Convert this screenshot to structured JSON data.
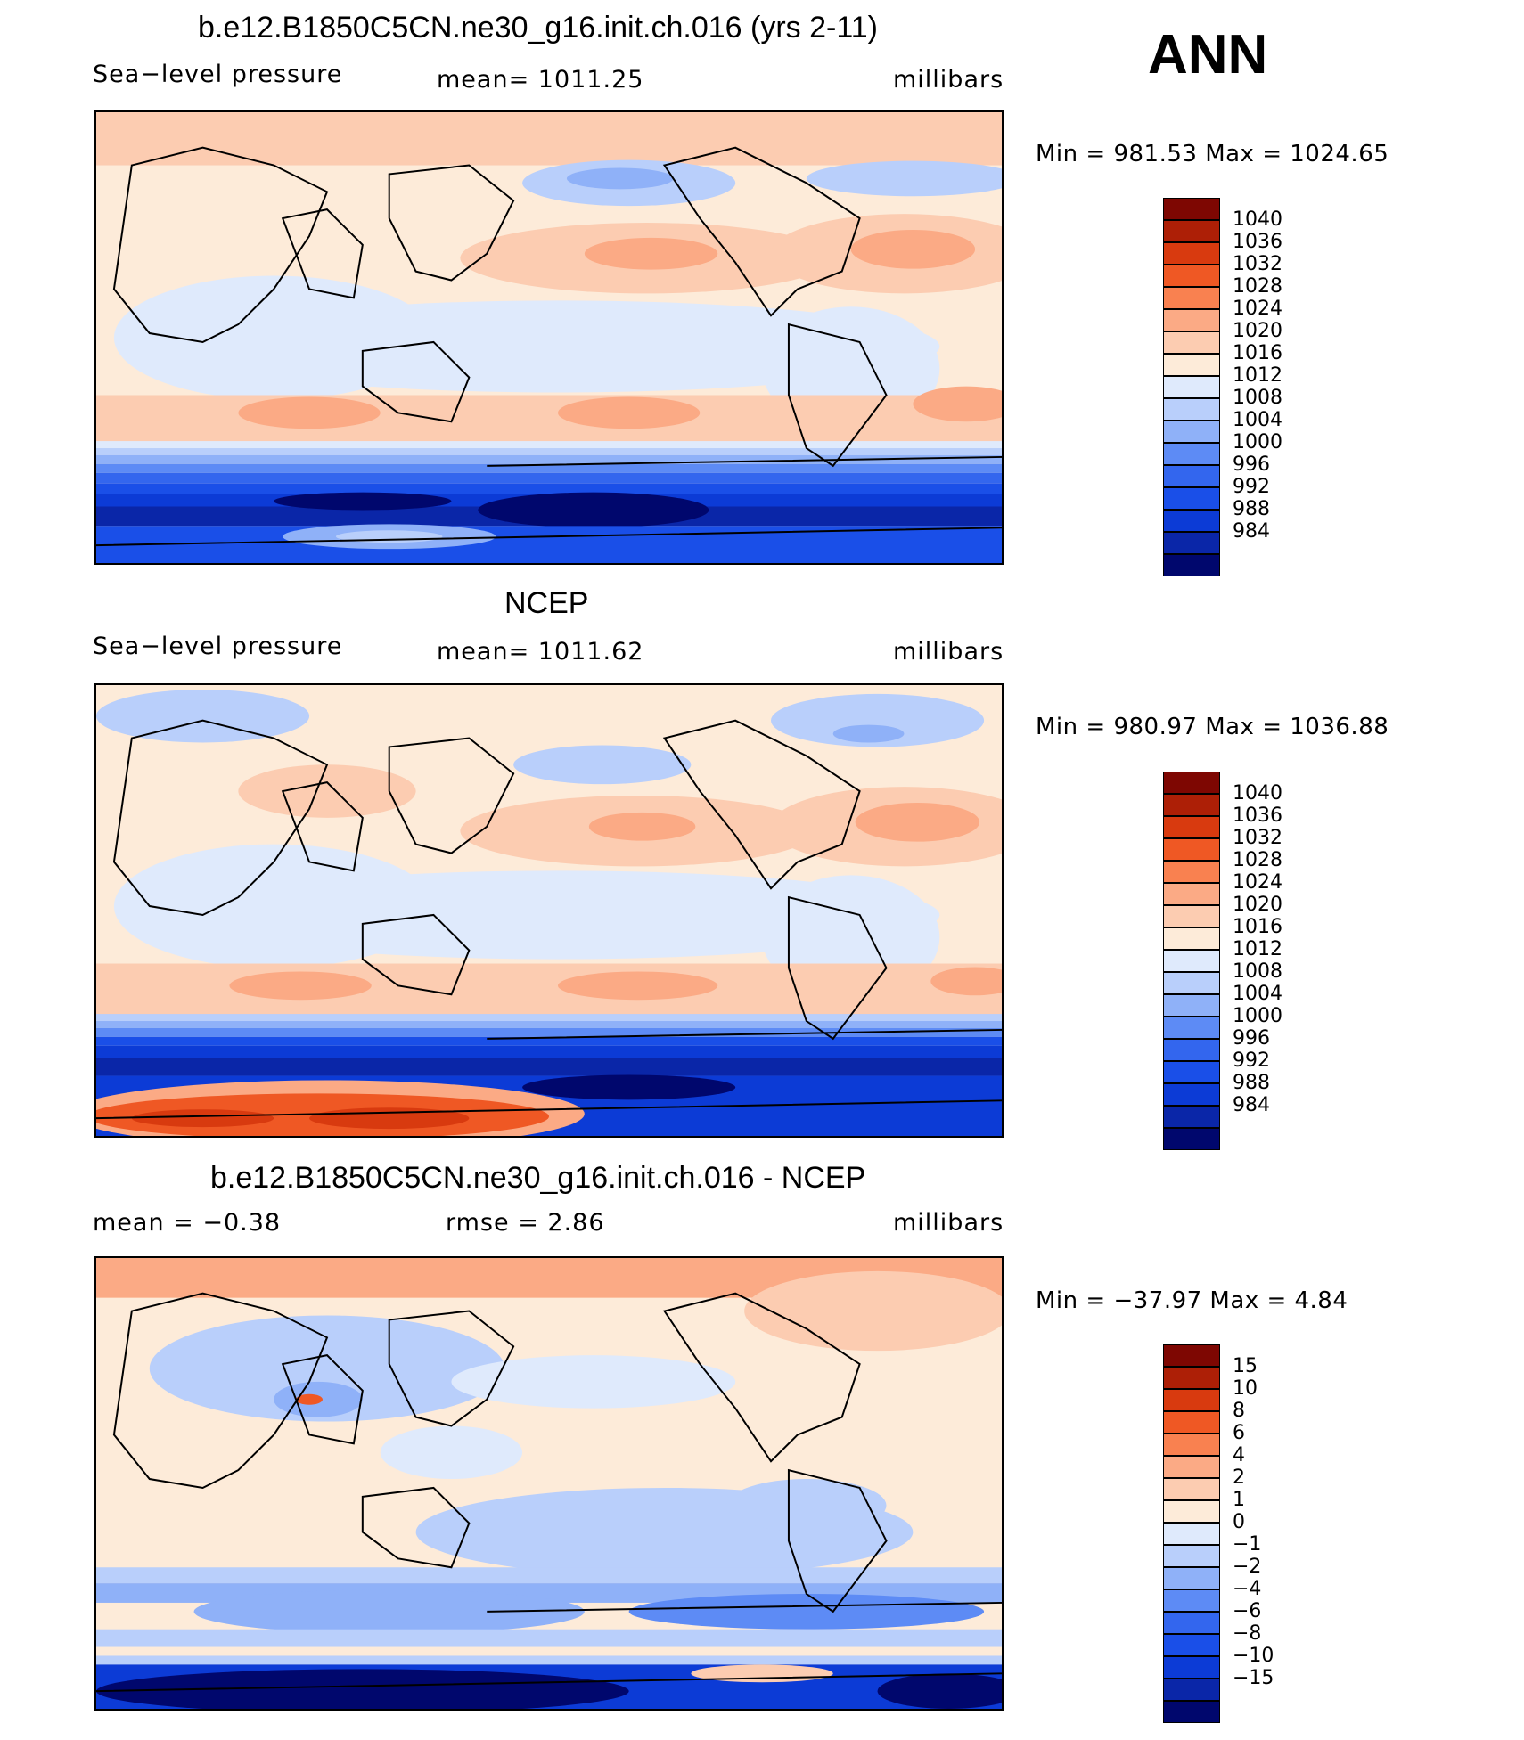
{
  "season": "ANN",
  "colors": {
    "pressure": [
      "#00076d",
      "#0a26a8",
      "#0c3bd6",
      "#1a4fe8",
      "#3366ee",
      "#5d8bf5",
      "#8fb1f8",
      "#b9cffb",
      "#dfeafc",
      "#fdebd9",
      "#fcccb1",
      "#fbaa85",
      "#f98150",
      "#ef5824",
      "#d83a0f",
      "#ad1f06",
      "#7e0702"
    ],
    "diff": [
      "#00076d",
      "#0a26a8",
      "#0c3bd6",
      "#1a4fe8",
      "#3366ee",
      "#5d8bf5",
      "#8fb1f8",
      "#b9cffb",
      "#dfeafc",
      "#fdebd9",
      "#fcccb1",
      "#fbaa85",
      "#f98150",
      "#ef5824",
      "#d83a0f",
      "#ad1f06",
      "#7e0702"
    ]
  },
  "panels": [
    {
      "title": "b.e12.B1850C5CN.ne30_g16.init.ch.016 (yrs 2-11)",
      "left": "Sea−level pressure",
      "middle": "mean=  1011.25",
      "right": "millibars",
      "minmax": "Min  =  981.53  Max  =  1024.65",
      "levels": [
        "1040",
        "1036",
        "1032",
        "1028",
        "1024",
        "1020",
        "1016",
        "1012",
        "1008",
        "1004",
        "1000",
        "996",
        "992",
        "988",
        "984"
      ],
      "field": "model"
    },
    {
      "title": "NCEP",
      "left": "Sea−level pressure",
      "middle": "mean=  1011.62",
      "right": "millibars",
      "minmax": "Min  =  980.97  Max  =  1036.88",
      "levels": [
        "1040",
        "1036",
        "1032",
        "1028",
        "1024",
        "1020",
        "1016",
        "1012",
        "1008",
        "1004",
        "1000",
        "996",
        "992",
        "988",
        "984"
      ],
      "field": "obs"
    },
    {
      "title": "b.e12.B1850C5CN.ne30_g16.init.ch.016 - NCEP",
      "left": "mean  =    −0.38",
      "middle": "rmse  =     2.86",
      "right": "millibars",
      "minmax": "Min  =  −37.97  Max  =     4.84",
      "levels": [
        "15",
        "10",
        "8",
        "6",
        "4",
        "2",
        "1",
        "0",
        "−1",
        "−2",
        "−4",
        "−6",
        "−8",
        "−10",
        "−15"
      ],
      "field": "diff"
    }
  ]
}
